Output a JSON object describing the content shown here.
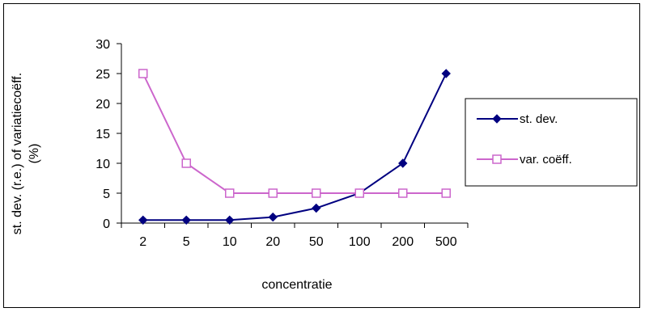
{
  "chart_data": {
    "type": "line",
    "categories": [
      "2",
      "5",
      "10",
      "20",
      "50",
      "100",
      "200",
      "500"
    ],
    "series": [
      {
        "name": "st. dev.",
        "values": [
          0.5,
          0.5,
          0.5,
          1,
          2.5,
          5,
          10,
          25
        ],
        "color": "#000080",
        "marker": "diamond-filled"
      },
      {
        "name": "var. coëff.",
        "values": [
          25,
          10,
          5,
          5,
          5,
          5,
          5,
          5
        ],
        "color": "#cc66cc",
        "marker": "square-open"
      }
    ],
    "title": "",
    "xlabel": "concentratie",
    "ylabel_line1": "st. dev. (r.e.) of variatiecoëff.",
    "ylabel_line2": "(%)",
    "ylim": [
      0,
      30
    ],
    "yticks": [
      0,
      5,
      10,
      15,
      20,
      25,
      30
    ],
    "grid": false,
    "legend_position": "right"
  }
}
